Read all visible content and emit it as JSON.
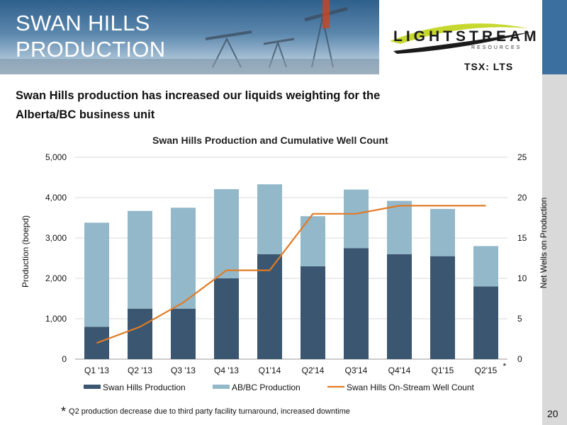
{
  "header": {
    "title_line1": "SWAN HILLS",
    "title_line2": "PRODUCTION",
    "logo_text": "LIGHTSTREAM",
    "logo_sub": "RESOURCES",
    "ticker": "TSX: LTS"
  },
  "subtitle": "Swan Hills production has increased our liquids weighting for the Alberta/BC business unit",
  "colors": {
    "swan_hills": "#3b5670",
    "abbc": "#93b8c9",
    "well_count": "#e07b26",
    "grid": "#d9d9d9"
  },
  "chart_data": {
    "type": "bar",
    "title": "Swan Hills Production and Cumulative Well Count",
    "ylabel": "Production (boepd)",
    "y2label": "Net Wells on Production",
    "categories": [
      "Q1 '13",
      "Q2 '13",
      "Q3 '13",
      "Q4 '13",
      "Q1'14",
      "Q2'14",
      "Q3'14",
      "Q4'14",
      "Q1'15",
      "Q2'15"
    ],
    "category_note": "*",
    "ylim": [
      0,
      5000
    ],
    "yticks": [
      0,
      1000,
      2000,
      3000,
      4000,
      5000
    ],
    "ytick_labels": [
      "0",
      "1,000",
      "2,000",
      "3,000",
      "4,000",
      "5,000"
    ],
    "y2lim": [
      0,
      25
    ],
    "y2ticks": [
      0,
      5,
      10,
      15,
      20,
      25
    ],
    "grid": true,
    "legend": "bottom",
    "series": [
      {
        "name": "Swan Hills Production",
        "type": "bar",
        "stack": true,
        "values": [
          800,
          1250,
          1250,
          2000,
          2600,
          2300,
          2750,
          2600,
          2550,
          1800
        ]
      },
      {
        "name": "AB/BC Production",
        "type": "bar",
        "stack": true,
        "values": [
          2580,
          2420,
          2500,
          2210,
          1730,
          1240,
          1450,
          1320,
          1170,
          1000
        ]
      },
      {
        "name": "Swan Hills On-Stream Well Count",
        "type": "line",
        "axis": "y2",
        "values": [
          2,
          4,
          7,
          11,
          11,
          18,
          18,
          19,
          19,
          19
        ]
      }
    ]
  },
  "footnote": {
    "star": "*",
    "text": "Q2 production decrease due to third party facility turnaround, increased downtime"
  },
  "page_number": "20"
}
